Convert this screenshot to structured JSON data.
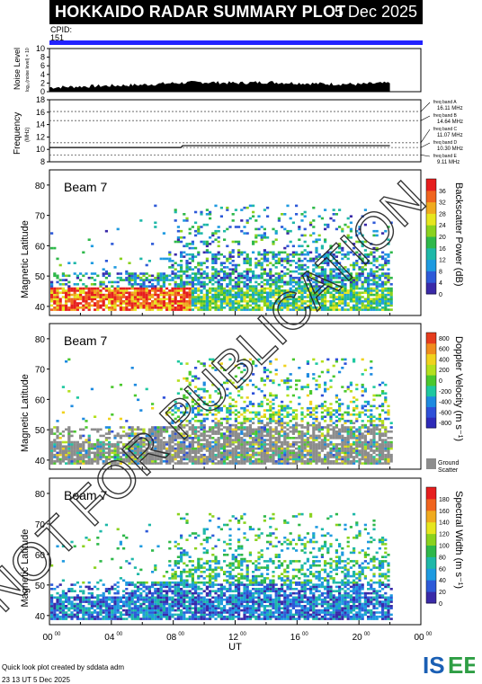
{
  "header": {
    "title": "HOKKAIDO RADAR SUMMARY PLOT",
    "date": "5 Dec 2025",
    "cpid_label": "CPID:",
    "cpid_value": "151"
  },
  "footer": {
    "created_by": "Quick look plot created by sddata adm",
    "timestamp": "23 13 UT  5 Dec 2025",
    "logo_text": "ISEE"
  },
  "watermark": "NOT FOR PUBLICATION",
  "chart_data": [
    {
      "type": "area",
      "panel": "noise",
      "ylabel": "Noise Level",
      "ylabel_sub": "log₁₀(noise level) × 10",
      "ylim": [
        0,
        10
      ],
      "yticks": [
        "0",
        "2",
        "4",
        "6",
        "8",
        "10"
      ],
      "x": [
        0,
        1,
        2,
        3,
        4,
        5,
        6,
        7,
        8,
        9,
        10,
        11,
        12,
        13,
        14,
        15,
        16,
        17,
        18,
        19,
        20,
        21,
        22
      ],
      "values": [
        1.0,
        1.1,
        1.2,
        1.3,
        1.4,
        1.5,
        1.6,
        1.8,
        2.0,
        2.1,
        2.2,
        2.1,
        2.0,
        2.1,
        2.2,
        2.1,
        2.0,
        1.9,
        1.8,
        1.8,
        1.7,
        1.9,
        2.0
      ]
    },
    {
      "type": "line",
      "panel": "frequency",
      "ylabel": "Frequency",
      "ylabel_unit": "(MHz)",
      "ylim": [
        8,
        18
      ],
      "yticks": [
        "8",
        "10",
        "12",
        "14",
        "16",
        "18"
      ],
      "bands": [
        {
          "label": "freq band A",
          "value": "16.11 MHz",
          "mhz": 16.11
        },
        {
          "label": "freq band B",
          "value": "14.64 MHz",
          "mhz": 14.64
        },
        {
          "label": "freq band C",
          "value": "11.07 MHz",
          "mhz": 11.07
        },
        {
          "label": "freq band D",
          "value": "10.30 MHz",
          "mhz": 10.3
        },
        {
          "label": "freq band E",
          "value": "9.11 MHz",
          "mhz": 9.11
        }
      ],
      "x": [
        0,
        8.5,
        8.6,
        22
      ],
      "values": [
        10.3,
        10.3,
        10.6,
        10.6
      ]
    },
    {
      "type": "heatmap",
      "panel": "power",
      "beam_label": "Beam  7",
      "ylabel": "Magnetic Latitude",
      "yticks": [
        "40",
        "50",
        "60",
        "70",
        "80"
      ],
      "ylim": [
        37,
        85
      ],
      "colorbar_label": "Backscatter Power (dB)",
      "colorbar_ticks": [
        "0",
        "4",
        "8",
        "12",
        "16",
        "20",
        "24",
        "28",
        "32",
        "36"
      ]
    },
    {
      "type": "heatmap",
      "panel": "velocity",
      "beam_label": "Beam  7",
      "ylabel": "Magnetic Latitude",
      "yticks": [
        "40",
        "50",
        "60",
        "70",
        "80"
      ],
      "ylim": [
        37,
        85
      ],
      "colorbar_label": "Doppler Velocity (m s⁻¹)",
      "colorbar_ticks": [
        "800",
        "600",
        "400",
        "200",
        "0",
        "-200",
        "-400",
        "-600",
        "-800"
      ],
      "ground_scatter_label_1": "Ground",
      "ground_scatter_label_2": "Scatter"
    },
    {
      "type": "heatmap",
      "panel": "width",
      "beam_label": "Beam  7",
      "ylabel": "Magnetic Latitude",
      "yticks": [
        "40",
        "50",
        "60",
        "70",
        "80"
      ],
      "ylim": [
        37,
        85
      ],
      "colorbar_label": "Spectral Width (m s⁻¹)",
      "colorbar_ticks": [
        "0",
        "20",
        "40",
        "60",
        "80",
        "100",
        "120",
        "140",
        "160",
        "180"
      ]
    }
  ],
  "xaxis": {
    "label": "UT",
    "ticks": [
      {
        "h": "00",
        "m": "00"
      },
      {
        "h": "04",
        "m": "00"
      },
      {
        "h": "08",
        "m": "00"
      },
      {
        "h": "12",
        "m": "00"
      },
      {
        "h": "16",
        "m": "00"
      },
      {
        "h": "20",
        "m": "00"
      },
      {
        "h": "00",
        "m": "00"
      }
    ]
  },
  "colors": {
    "header_bg": "#000000",
    "cpid_bar": "#2222ff",
    "ground_scatter": "#8c8c8c",
    "logo_blue": "#1a5fb4",
    "logo_green": "#2e9e44"
  }
}
